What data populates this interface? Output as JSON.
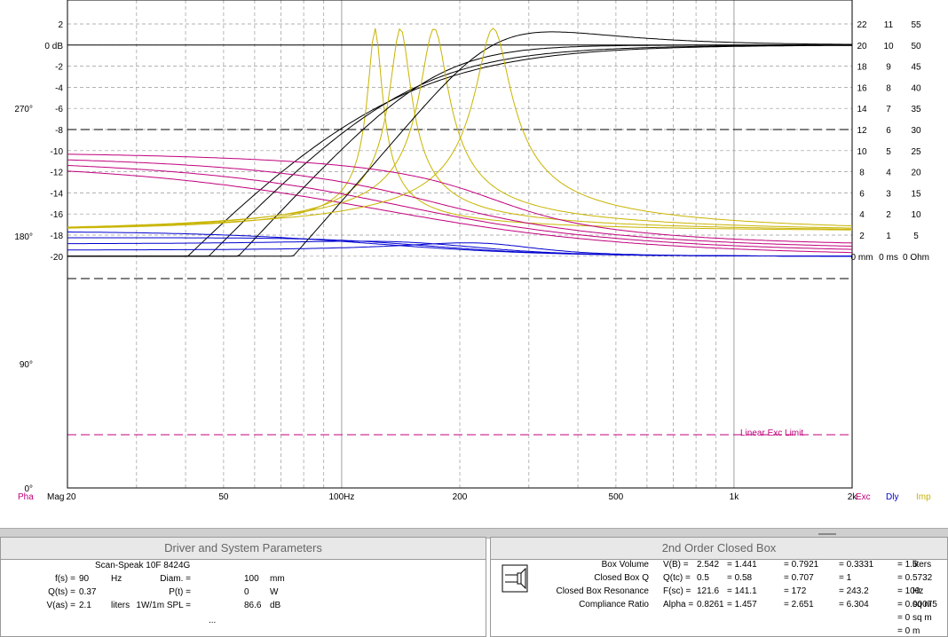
{
  "plot": {
    "left_axis": {
      "unit_label": "0 dB",
      "labels": [
        "2",
        "0 dB",
        "-2",
        "-4",
        "-6",
        "-8",
        "-10",
        "-12",
        "-14",
        "-16",
        "-18",
        "-20"
      ],
      "phase_labels": [
        "270°",
        "180°",
        "90°",
        "0°"
      ]
    },
    "x_axis": {
      "labels": [
        "20",
        "50",
        "100Hz",
        "200",
        "500",
        "1k",
        "2k"
      ],
      "pha_label": "Pha",
      "mag_label": "Mag",
      "exc_label": "Exc",
      "dly_label": "Dly",
      "imp_label": "Imp"
    },
    "right_axes": {
      "exc": [
        "22",
        "20",
        "18",
        "16",
        "14",
        "12",
        "10",
        "8",
        "6",
        "4",
        "2",
        "0 mm"
      ],
      "dly": [
        "11",
        "10",
        "9",
        "8",
        "7",
        "6",
        "5",
        "4",
        "3",
        "2",
        "1",
        "0 ms"
      ],
      "imp": [
        "55",
        "50",
        "45",
        "40",
        "35",
        "30",
        "25",
        "20",
        "15",
        "10",
        "5",
        "0 Ohm"
      ]
    },
    "linear_exc_limit_label": "Linear Exc Limit",
    "colors": {
      "magnitude": "#000000",
      "impedance": "#c8b400",
      "phase": "#c0007c",
      "delay": "#0000d0"
    }
  },
  "driver_panel": {
    "title": "Driver and System Parameters",
    "driver_name": "Scan-Speak 10F 8424G",
    "rows": [
      {
        "l1": "f(s) =",
        "v1": "90",
        "u1": "Hz",
        "l2": "Diam. =",
        "v2": "100",
        "u2": "mm"
      },
      {
        "l1": "Q(ts) =",
        "v1": "0.37",
        "u1": "",
        "l2": "P(t) =",
        "v2": "0",
        "u2": "W"
      },
      {
        "l1": "V(as) =",
        "v1": "2.1",
        "u1": "liters",
        "l2": "1W/1m SPL =",
        "v2": "86.6",
        "u2": "dB"
      }
    ],
    "ellipsis": "..."
  },
  "box_panel": {
    "title": "2nd Order Closed Box",
    "rows": [
      {
        "label": "Box Volume",
        "sym": "V(B) =",
        "vals": [
          "2.542",
          "= 1.441",
          "= 0.7921",
          "= 0.3331",
          "= 1.5"
        ],
        "unit": "liters"
      },
      {
        "label": "Closed Box Q",
        "sym": "Q(tc) =",
        "vals": [
          "0.5",
          "= 0.58",
          "= 0.707",
          "= 1",
          "= 0.5732"
        ],
        "unit": ""
      },
      {
        "label": "Closed Box Resonance",
        "sym": "F(sc) =",
        "vals": [
          "121.6",
          "= 141.1",
          "= 172",
          "= 243.2",
          "= 100"
        ],
        "unit": "Hz"
      },
      {
        "label": "Compliance Ratio",
        "sym": "Alpha =",
        "vals": [
          "0.8261",
          "= 1.457",
          "= 2.651",
          "= 6.304",
          "= 0.00075"
        ],
        "unit": "sq m"
      },
      {
        "label": "",
        "sym": "",
        "vals": [
          "",
          "",
          "",
          "",
          "= 0"
        ],
        "unit": "sq m"
      },
      {
        "label": "",
        "sym": "",
        "vals": [
          "",
          "",
          "",
          "",
          "= 0"
        ],
        "unit": "m"
      }
    ]
  }
}
